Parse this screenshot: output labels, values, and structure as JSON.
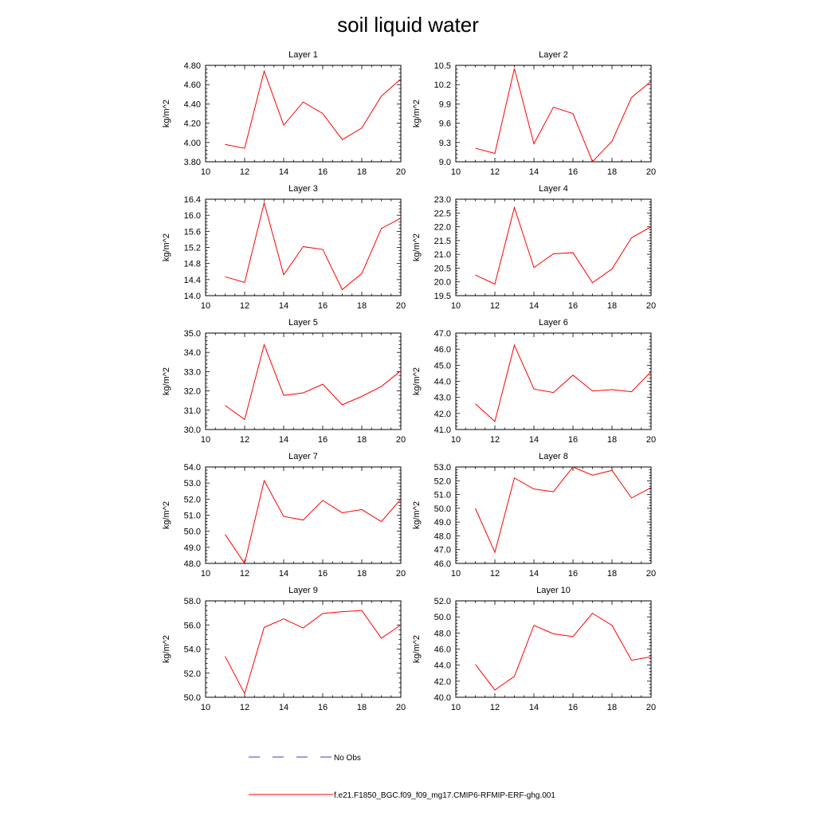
{
  "figure": {
    "title": "soil liquid water"
  },
  "legend": {
    "entries": [
      {
        "label": "No Obs",
        "color": "#3f3fbf",
        "style": "dashed"
      },
      {
        "label": "f.e21.F1850_BGC.f09_f09_mg17.CMIP6-RFMIP-ERF-ghg.001",
        "color": "#ff0000",
        "style": "solid"
      }
    ]
  },
  "chart_data": [
    {
      "type": "line",
      "title": "Layer 1",
      "xlabel": "",
      "ylabel": "kg/m^2",
      "xlim": [
        10,
        20
      ],
      "ylim": [
        3.8,
        4.8
      ],
      "x_ticks": [
        "10",
        "12",
        "14",
        "16",
        "18",
        "20"
      ],
      "y_ticks": [
        "3.80",
        "4.00",
        "4.20",
        "4.40",
        "4.60",
        "4.80"
      ],
      "series": [
        {
          "color": "#ff0000",
          "x": [
            11,
            12,
            13,
            14,
            15,
            16,
            17,
            18,
            19,
            20
          ],
          "y": [
            3.98,
            3.94,
            4.74,
            4.18,
            4.42,
            4.3,
            4.03,
            4.15,
            4.48,
            4.66
          ]
        }
      ]
    },
    {
      "type": "line",
      "title": "Layer 2",
      "xlabel": "",
      "ylabel": "kg/m^2",
      "xlim": [
        10,
        20
      ],
      "ylim": [
        9.0,
        10.5
      ],
      "x_ticks": [
        "10",
        "12",
        "14",
        "16",
        "18",
        "20"
      ],
      "y_ticks": [
        "9.0",
        "9.3",
        "9.6",
        "9.9",
        "10.2",
        "10.5"
      ],
      "series": [
        {
          "color": "#ff0000",
          "x": [
            11,
            12,
            13,
            14,
            15,
            16,
            17,
            18,
            19,
            20
          ],
          "y": [
            9.21,
            9.13,
            10.45,
            9.28,
            9.85,
            9.75,
            9.0,
            9.32,
            10.0,
            10.25
          ]
        }
      ]
    },
    {
      "type": "line",
      "title": "Layer 3",
      "xlabel": "",
      "ylabel": "kg/m^2",
      "xlim": [
        10,
        20
      ],
      "ylim": [
        14.0,
        16.4
      ],
      "x_ticks": [
        "10",
        "12",
        "14",
        "16",
        "18",
        "20"
      ],
      "y_ticks": [
        "14.0",
        "14.4",
        "14.8",
        "15.2",
        "15.6",
        "16.0",
        "16.4"
      ],
      "series": [
        {
          "color": "#ff0000",
          "x": [
            11,
            12,
            13,
            14,
            15,
            16,
            17,
            18,
            19,
            20
          ],
          "y": [
            14.47,
            14.33,
            16.31,
            14.52,
            15.22,
            15.15,
            14.15,
            14.55,
            15.67,
            15.93
          ]
        }
      ]
    },
    {
      "type": "line",
      "title": "Layer 4",
      "xlabel": "",
      "ylabel": "kg/m^2",
      "xlim": [
        10,
        20
      ],
      "ylim": [
        19.5,
        23.0
      ],
      "x_ticks": [
        "10",
        "12",
        "14",
        "16",
        "18",
        "20"
      ],
      "y_ticks": [
        "19.5",
        "20.0",
        "20.5",
        "21.0",
        "21.5",
        "22.0",
        "22.5",
        "23.0"
      ],
      "series": [
        {
          "color": "#ff0000",
          "x": [
            11,
            12,
            13,
            14,
            15,
            16,
            17,
            18,
            19,
            20
          ],
          "y": [
            20.25,
            19.92,
            22.7,
            20.52,
            21.02,
            21.06,
            19.97,
            20.47,
            21.6,
            22.0
          ]
        }
      ]
    },
    {
      "type": "line",
      "title": "Layer 5",
      "xlabel": "",
      "ylabel": "kg/m^2",
      "xlim": [
        10,
        20
      ],
      "ylim": [
        30.0,
        35.0
      ],
      "x_ticks": [
        "10",
        "12",
        "14",
        "16",
        "18",
        "20"
      ],
      "y_ticks": [
        "30.0",
        "31.0",
        "32.0",
        "33.0",
        "34.0",
        "35.0"
      ],
      "series": [
        {
          "color": "#ff0000",
          "x": [
            11,
            12,
            13,
            14,
            15,
            16,
            17,
            18,
            19,
            20
          ],
          "y": [
            31.25,
            30.52,
            34.4,
            31.77,
            31.9,
            32.35,
            31.28,
            31.72,
            32.23,
            33.05
          ]
        }
      ]
    },
    {
      "type": "line",
      "title": "Layer 6",
      "xlabel": "",
      "ylabel": "kg/m^2",
      "xlim": [
        10,
        20
      ],
      "ylim": [
        41.0,
        47.0
      ],
      "x_ticks": [
        "10",
        "12",
        "14",
        "16",
        "18",
        "20"
      ],
      "y_ticks": [
        "41.0",
        "42.0",
        "43.0",
        "44.0",
        "45.0",
        "46.0",
        "47.0"
      ],
      "series": [
        {
          "color": "#ff0000",
          "x": [
            11,
            12,
            13,
            14,
            15,
            16,
            17,
            18,
            19,
            20
          ],
          "y": [
            42.6,
            41.5,
            46.25,
            43.52,
            43.3,
            44.38,
            43.4,
            43.48,
            43.35,
            44.6
          ]
        }
      ]
    },
    {
      "type": "line",
      "title": "Layer 7",
      "xlabel": "",
      "ylabel": "kg/m^2",
      "xlim": [
        10,
        20
      ],
      "ylim": [
        48.0,
        54.0
      ],
      "x_ticks": [
        "10",
        "12",
        "14",
        "16",
        "18",
        "20"
      ],
      "y_ticks": [
        "48.0",
        "49.0",
        "50.0",
        "51.0",
        "52.0",
        "53.0",
        "54.0"
      ],
      "series": [
        {
          "color": "#ff0000",
          "x": [
            11,
            12,
            13,
            14,
            15,
            16,
            17,
            18,
            19,
            20
          ],
          "y": [
            49.8,
            48.0,
            53.15,
            50.92,
            50.7,
            51.92,
            51.15,
            51.35,
            50.6,
            52.0
          ]
        }
      ]
    },
    {
      "type": "line",
      "title": "Layer 8",
      "xlabel": "",
      "ylabel": "kg/m^2",
      "xlim": [
        10,
        20
      ],
      "ylim": [
        46.0,
        53.0
      ],
      "x_ticks": [
        "10",
        "12",
        "14",
        "16",
        "18",
        "20"
      ],
      "y_ticks": [
        "46.0",
        "47.0",
        "48.0",
        "49.0",
        "50.0",
        "51.0",
        "52.0",
        "53.0"
      ],
      "series": [
        {
          "color": "#ff0000",
          "x": [
            11,
            12,
            13,
            14,
            15,
            16,
            17,
            18,
            19,
            20
          ],
          "y": [
            50.0,
            46.8,
            52.2,
            51.4,
            51.2,
            53.0,
            52.4,
            52.75,
            50.75,
            51.5
          ]
        }
      ]
    },
    {
      "type": "line",
      "title": "Layer 9",
      "xlabel": "",
      "ylabel": "kg/m^2",
      "xlim": [
        10,
        20
      ],
      "ylim": [
        50.0,
        58.0
      ],
      "x_ticks": [
        "10",
        "12",
        "14",
        "16",
        "18",
        "20"
      ],
      "y_ticks": [
        "50.0",
        "52.0",
        "54.0",
        "56.0",
        "58.0"
      ],
      "series": [
        {
          "color": "#ff0000",
          "x": [
            11,
            12,
            13,
            14,
            15,
            16,
            17,
            18,
            19,
            20
          ],
          "y": [
            53.4,
            50.3,
            55.8,
            56.5,
            55.75,
            56.95,
            57.1,
            57.2,
            54.9,
            56.0
          ]
        }
      ]
    },
    {
      "type": "line",
      "title": "Layer 10",
      "xlabel": "",
      "ylabel": "kg/m^2",
      "xlim": [
        10,
        20
      ],
      "ylim": [
        40.0,
        52.0
      ],
      "x_ticks": [
        "10",
        "12",
        "14",
        "16",
        "18",
        "20"
      ],
      "y_ticks": [
        "40.0",
        "42.0",
        "44.0",
        "46.0",
        "48.0",
        "50.0",
        "52.0"
      ],
      "series": [
        {
          "color": "#ff0000",
          "x": [
            11,
            12,
            13,
            14,
            15,
            16,
            17,
            18,
            19,
            20
          ],
          "y": [
            44.1,
            40.9,
            42.6,
            48.95,
            47.9,
            47.55,
            50.45,
            48.95,
            44.6,
            45.05
          ]
        }
      ]
    }
  ]
}
